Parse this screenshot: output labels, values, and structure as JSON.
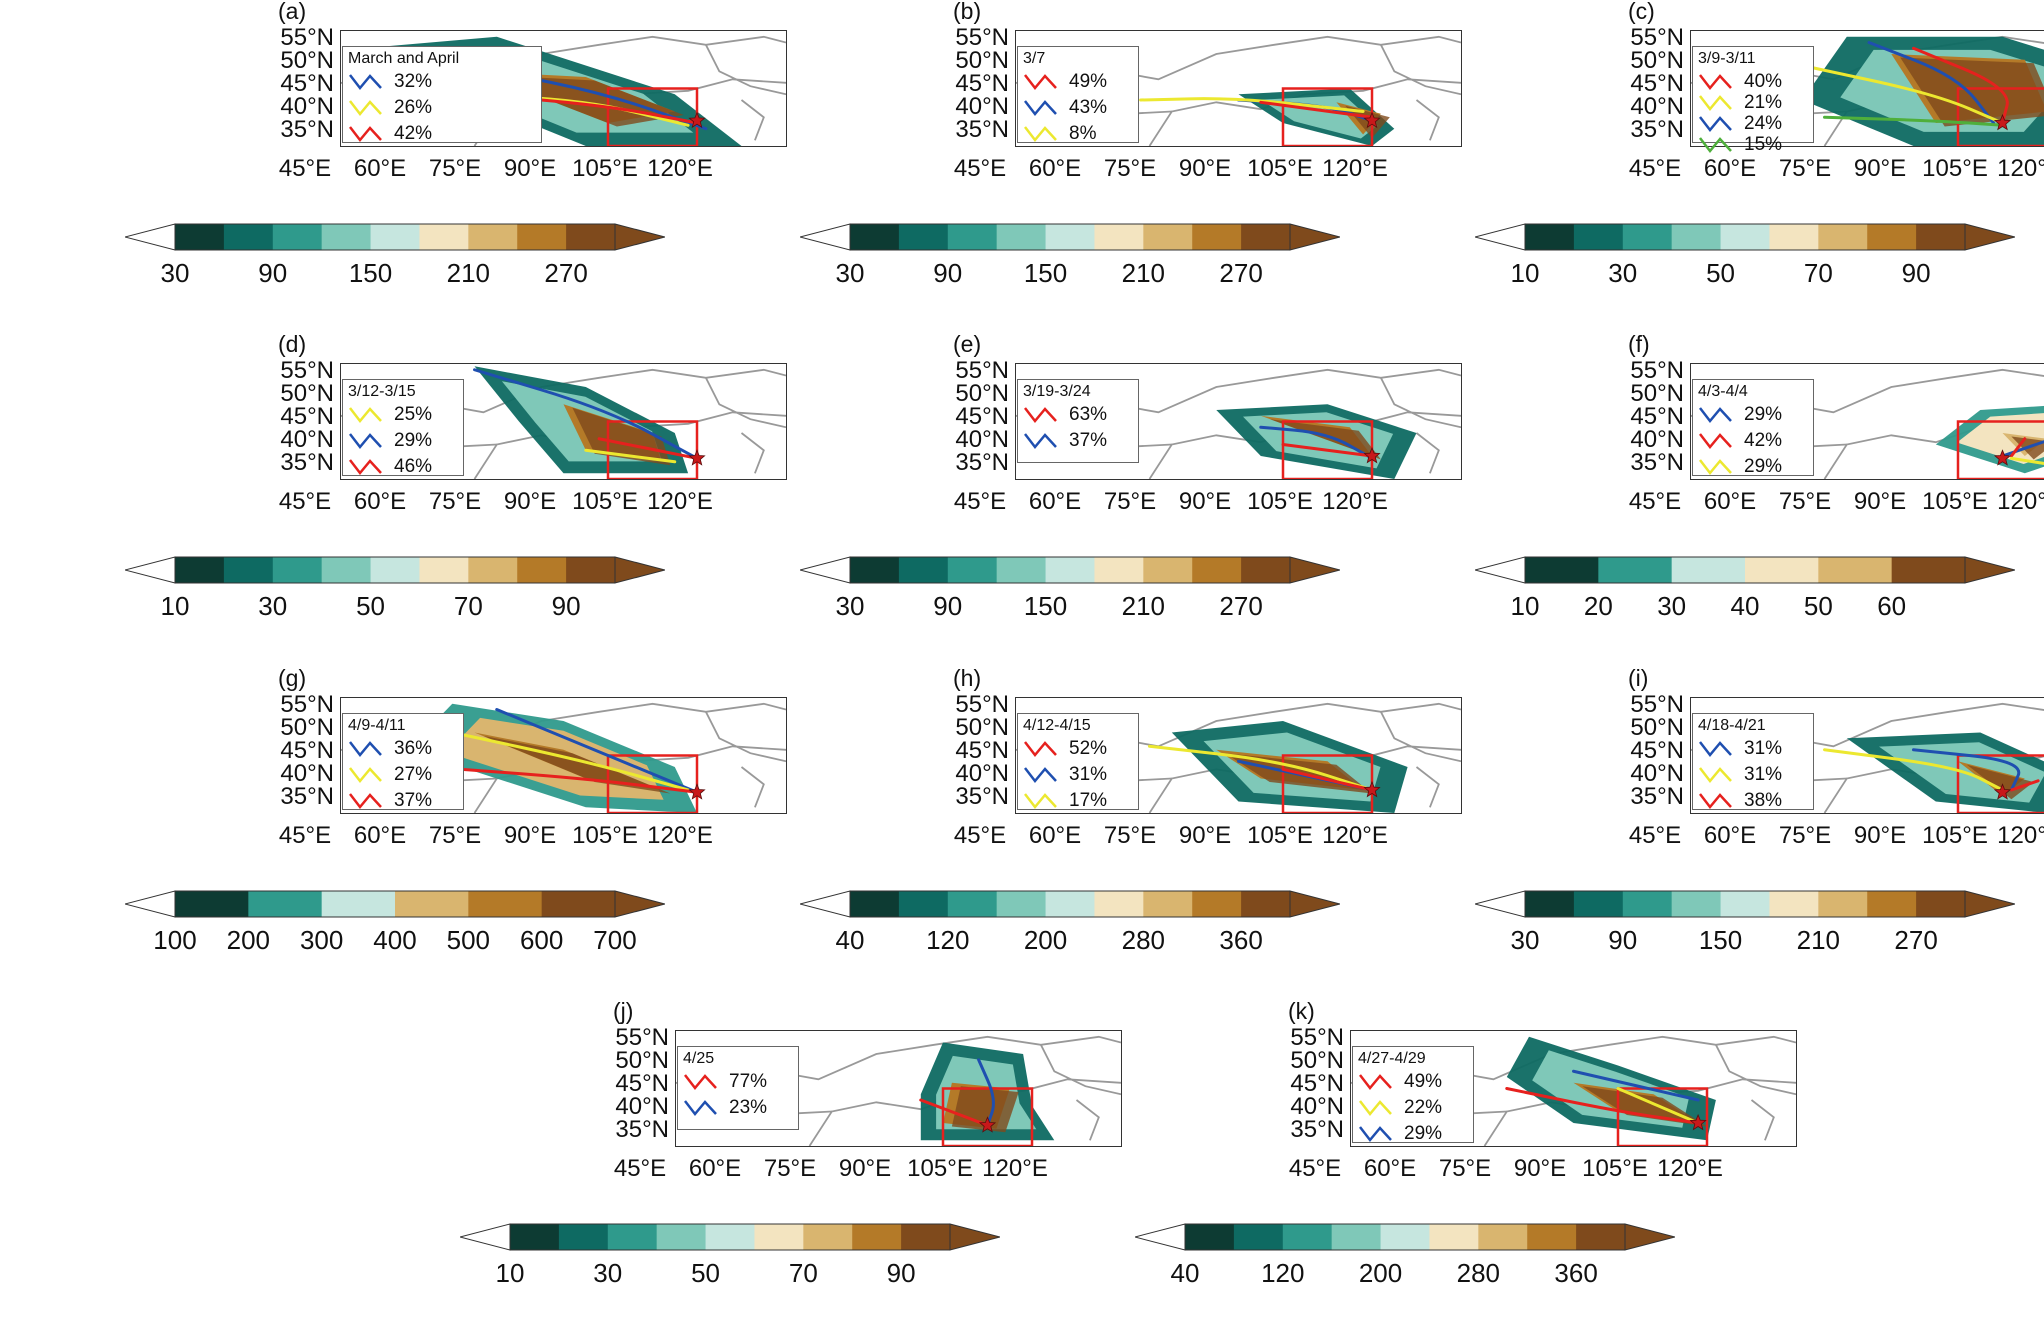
{
  "palette": {
    "colorbar9": [
      "#0d3b33",
      "#0e6a62",
      "#2f9a8c",
      "#7fc8b8",
      "#c6e6df",
      "#f3e4c0",
      "#d9b56f",
      "#b47a28",
      "#7f4a1c"
    ],
    "colorbar6": [
      "#0d3b33",
      "#2f9a8c",
      "#c6e6df",
      "#f3e4c0",
      "#d9b56f",
      "#7f4a1c"
    ],
    "colorbar7": [
      "#0d3b33",
      "#2f9a8c",
      "#c6e6df",
      "#d9b56f",
      "#b47a28",
      "#7f4a1c"
    ],
    "line_colors": {
      "blue": "#1f4fb0",
      "yellow": "#ece830",
      "red": "#e6211e",
      "green": "#4faf3b"
    },
    "region_box": "#e6211e",
    "border_gray": "#999999"
  },
  "axes": {
    "lat_labels": [
      "55°N",
      "50°N",
      "45°N",
      "40°N",
      "35°N"
    ],
    "lon_labels": [
      "45°E",
      "60°E",
      "75°E",
      "90°E",
      "105°E",
      "120°E"
    ]
  },
  "panels": [
    {
      "id": "a",
      "label": "(a)",
      "legend_title": "March and April",
      "entries": [
        {
          "color": "blue",
          "pct": "32%"
        },
        {
          "color": "yellow",
          "pct": "26%"
        },
        {
          "color": "red",
          "pct": "42%"
        }
      ],
      "colorbar": {
        "type": "colorbar9",
        "ticks": [
          "30",
          "90",
          "150",
          "210",
          "270"
        ]
      }
    },
    {
      "id": "b",
      "label": "(b)",
      "legend_title": "3/7",
      "entries": [
        {
          "color": "red",
          "pct": "49%"
        },
        {
          "color": "blue",
          "pct": "43%"
        },
        {
          "color": "yellow",
          "pct": "8%"
        }
      ],
      "colorbar": {
        "type": "colorbar9",
        "ticks": [
          "30",
          "90",
          "150",
          "210",
          "270"
        ]
      }
    },
    {
      "id": "c",
      "label": "(c)",
      "legend_title": "3/9-3/11",
      "entries": [
        {
          "color": "red",
          "pct": "40%"
        },
        {
          "color": "yellow",
          "pct": "21%"
        },
        {
          "color": "blue",
          "pct": "24%"
        },
        {
          "color": "green",
          "pct": "15%"
        }
      ],
      "colorbar": {
        "type": "colorbar9",
        "ticks": [
          "10",
          "30",
          "50",
          "70",
          "90"
        ]
      }
    },
    {
      "id": "d",
      "label": "(d)",
      "legend_title": "3/12-3/15",
      "entries": [
        {
          "color": "yellow",
          "pct": "25%"
        },
        {
          "color": "blue",
          "pct": "29%"
        },
        {
          "color": "red",
          "pct": "46%"
        }
      ],
      "colorbar": {
        "type": "colorbar9",
        "ticks": [
          "10",
          "30",
          "50",
          "70",
          "90"
        ]
      }
    },
    {
      "id": "e",
      "label": "(e)",
      "legend_title": "3/19-3/24",
      "entries": [
        {
          "color": "red",
          "pct": "63%"
        },
        {
          "color": "blue",
          "pct": "37%"
        }
      ],
      "colorbar": {
        "type": "colorbar9",
        "ticks": [
          "30",
          "90",
          "150",
          "210",
          "270"
        ]
      }
    },
    {
      "id": "f",
      "label": "(f)",
      "legend_title": "4/3-4/4",
      "entries": [
        {
          "color": "blue",
          "pct": "29%"
        },
        {
          "color": "red",
          "pct": "42%"
        },
        {
          "color": "yellow",
          "pct": "29%"
        }
      ],
      "colorbar": {
        "type": "colorbar6",
        "ticks": [
          "10",
          "20",
          "30",
          "40",
          "50",
          "60"
        ]
      }
    },
    {
      "id": "g",
      "label": "(g)",
      "legend_title": "4/9-4/11",
      "entries": [
        {
          "color": "blue",
          "pct": "36%"
        },
        {
          "color": "yellow",
          "pct": "27%"
        },
        {
          "color": "red",
          "pct": "37%"
        }
      ],
      "colorbar": {
        "type": "colorbar7",
        "ticks": [
          "100",
          "200",
          "300",
          "400",
          "500",
          "600",
          "700"
        ]
      }
    },
    {
      "id": "h",
      "label": "(h)",
      "legend_title": "4/12-4/15",
      "entries": [
        {
          "color": "red",
          "pct": "52%"
        },
        {
          "color": "blue",
          "pct": "31%"
        },
        {
          "color": "yellow",
          "pct": "17%"
        }
      ],
      "colorbar": {
        "type": "colorbar9",
        "ticks": [
          "40",
          "120",
          "200",
          "280",
          "360"
        ]
      }
    },
    {
      "id": "i",
      "label": "(i)",
      "legend_title": "4/18-4/21",
      "entries": [
        {
          "color": "blue",
          "pct": "31%"
        },
        {
          "color": "yellow",
          "pct": "31%"
        },
        {
          "color": "red",
          "pct": "38%"
        }
      ],
      "colorbar": {
        "type": "colorbar9",
        "ticks": [
          "30",
          "90",
          "150",
          "210",
          "270"
        ]
      }
    },
    {
      "id": "j",
      "label": "(j)",
      "legend_title": "4/25",
      "entries": [
        {
          "color": "red",
          "pct": "77%"
        },
        {
          "color": "blue",
          "pct": "23%"
        }
      ],
      "colorbar": {
        "type": "colorbar9",
        "ticks": [
          "10",
          "30",
          "50",
          "70",
          "90"
        ]
      }
    },
    {
      "id": "k",
      "label": "(k)",
      "legend_title": "4/27-4/29",
      "entries": [
        {
          "color": "red",
          "pct": "49%"
        },
        {
          "color": "yellow",
          "pct": "22%"
        },
        {
          "color": "blue",
          "pct": "29%"
        }
      ],
      "colorbar": {
        "type": "colorbar9",
        "ticks": [
          "40",
          "120",
          "200",
          "280",
          "360"
        ]
      }
    }
  ]
}
